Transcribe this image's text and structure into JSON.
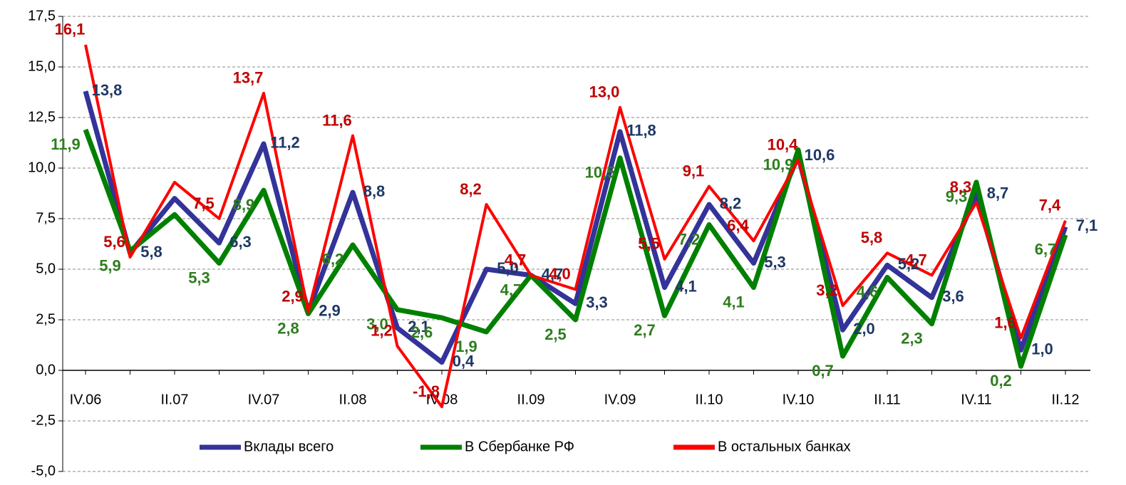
{
  "chart_data": {
    "type": "line",
    "categories": [
      "IV.06",
      null,
      "II.07",
      null,
      "IV.07",
      null,
      "II.08",
      null,
      "IV.08",
      null,
      "II.09",
      null,
      "IV.09",
      null,
      "II.10",
      null,
      "IV.10",
      null,
      "II.11",
      null,
      "IV.11",
      null,
      "II.12"
    ],
    "series": [
      {
        "name": "Вклады всего",
        "color": "#333399",
        "values": [
          13.8,
          5.8,
          8.5,
          6.3,
          11.2,
          2.9,
          8.8,
          2.1,
          0.4,
          5.0,
          4.7,
          3.3,
          11.8,
          4.1,
          8.2,
          5.3,
          10.6,
          2.0,
          5.2,
          3.6,
          8.7,
          1.0,
          7.1
        ],
        "value_labels": [
          "13,8",
          "5,8",
          null,
          "6,3",
          "11,2",
          "2,9",
          "8,8",
          "2,1",
          "0,4",
          "5,0",
          "4,7",
          "3,3",
          "11,8",
          "4,1",
          "8,2",
          "5,3",
          "10,6",
          "2,0",
          "5,2",
          "3,6",
          "8,7",
          "1,0",
          "7,1"
        ],
        "label_color": "#1f3864"
      },
      {
        "name": "В Сбербанке РФ",
        "color": "#008000",
        "values": [
          11.9,
          5.9,
          7.7,
          5.3,
          8.9,
          2.8,
          6.2,
          3.0,
          2.6,
          1.9,
          4.7,
          2.5,
          10.5,
          2.7,
          7.2,
          4.1,
          10.9,
          0.7,
          4.6,
          2.3,
          9.3,
          0.2,
          6.7
        ],
        "value_labels": [
          "11,9",
          "5,9",
          null,
          "5,3",
          "8,9",
          "2,8",
          "6,2",
          "3,0",
          "2,6",
          "1,9",
          "4,7",
          "2,5",
          "10,5",
          "2,7",
          "7,2",
          "4,1",
          "10,9",
          "0,7",
          "4,6",
          "2,3",
          "9,3",
          "0,2",
          "6,7"
        ],
        "label_color": "#2e7d1e"
      },
      {
        "name": "В остальных банках",
        "color": "#ff0000",
        "values": [
          16.1,
          5.6,
          9.3,
          7.5,
          13.7,
          2.9,
          11.6,
          1.2,
          -1.8,
          8.2,
          4.7,
          4.0,
          13.0,
          5.5,
          9.1,
          6.4,
          10.4,
          3.2,
          5.8,
          4.7,
          8.3,
          1.6,
          7.4
        ],
        "value_labels": [
          "16,1",
          "5,6",
          null,
          "7,5",
          "13,7",
          "2,9",
          "11,6",
          "1,2",
          "-1,8",
          "8,2",
          "4,7",
          "4,0",
          "13,0",
          "5,5",
          "9,1",
          "6,4",
          "10,4",
          "3,2",
          "5,8",
          "4,7",
          "8,3",
          "1,6",
          "7,4"
        ],
        "label_color": "#c00000"
      }
    ],
    "ylim": [
      -5,
      17.5
    ],
    "yticks": [
      {
        "value": -5,
        "label": "-5,0"
      },
      {
        "value": -2.5,
        "label": "-2,5"
      },
      {
        "value": 0,
        "label": "0,0"
      },
      {
        "value": 2.5,
        "label": "2,5"
      },
      {
        "value": 5,
        "label": "5,0"
      },
      {
        "value": 7.5,
        "label": "7,5"
      },
      {
        "value": 10,
        "label": "10,0"
      },
      {
        "value": 12.5,
        "label": "12,5"
      },
      {
        "value": 15,
        "label": "15,0"
      },
      {
        "value": 17.5,
        "label": "17,5"
      }
    ],
    "grid": true,
    "legend": "bottom"
  }
}
